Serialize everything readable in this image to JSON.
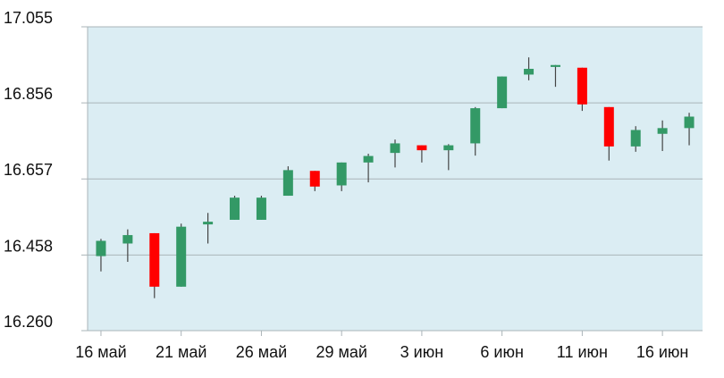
{
  "colors": {
    "plot_bg": "#dbedf3",
    "grid": "#aab4b8",
    "up": "#339966",
    "down": "#ff0000",
    "wick": "#444444",
    "axis_text": "#111111"
  },
  "chart_data": {
    "type": "candlestick",
    "title": "",
    "xlabel": "",
    "ylabel": "",
    "ylim": [
      16.26,
      17.055
    ],
    "yticks": [
      "16.260",
      "16.458",
      "16.657",
      "16.856",
      "17.055"
    ],
    "xtick_labels": [
      {
        "index": 0,
        "label": "16 май"
      },
      {
        "index": 3,
        "label": "21 май"
      },
      {
        "index": 6,
        "label": "26 май"
      },
      {
        "index": 9,
        "label": "29 май"
      },
      {
        "index": 12,
        "label": "3 июн"
      },
      {
        "index": 15,
        "label": "6 июн"
      },
      {
        "index": 18,
        "label": "11 июн"
      },
      {
        "index": 21,
        "label": "16 июн"
      }
    ],
    "grid": "horizontal",
    "candles": [
      {
        "o": 16.455,
        "h": 16.5,
        "l": 16.415,
        "c": 16.495
      },
      {
        "o": 16.488,
        "h": 16.525,
        "l": 16.44,
        "c": 16.51
      },
      {
        "o": 16.515,
        "h": 16.515,
        "l": 16.345,
        "c": 16.375
      },
      {
        "o": 16.375,
        "h": 16.54,
        "l": 16.375,
        "c": 16.532
      },
      {
        "o": 16.538,
        "h": 16.568,
        "l": 16.488,
        "c": 16.545
      },
      {
        "o": 16.55,
        "h": 16.613,
        "l": 16.55,
        "c": 16.608
      },
      {
        "o": 16.55,
        "h": 16.613,
        "l": 16.55,
        "c": 16.608
      },
      {
        "o": 16.613,
        "h": 16.69,
        "l": 16.613,
        "c": 16.68
      },
      {
        "o": 16.678,
        "h": 16.678,
        "l": 16.625,
        "c": 16.637
      },
      {
        "o": 16.64,
        "h": 16.7,
        "l": 16.625,
        "c": 16.7
      },
      {
        "o": 16.7,
        "h": 16.723,
        "l": 16.648,
        "c": 16.717
      },
      {
        "o": 16.725,
        "h": 16.76,
        "l": 16.687,
        "c": 16.75
      },
      {
        "o": 16.745,
        "h": 16.745,
        "l": 16.7,
        "c": 16.732
      },
      {
        "o": 16.732,
        "h": 16.748,
        "l": 16.68,
        "c": 16.745
      },
      {
        "o": 16.75,
        "h": 16.845,
        "l": 16.718,
        "c": 16.842
      },
      {
        "o": 16.842,
        "h": 16.925,
        "l": 16.842,
        "c": 16.925
      },
      {
        "o": 16.93,
        "h": 16.975,
        "l": 16.915,
        "c": 16.945
      },
      {
        "o": 16.95,
        "h": 16.955,
        "l": 16.898,
        "c": 16.955
      },
      {
        "o": 16.948,
        "h": 16.948,
        "l": 16.835,
        "c": 16.852
      },
      {
        "o": 16.845,
        "h": 16.845,
        "l": 16.705,
        "c": 16.742
      },
      {
        "o": 16.742,
        "h": 16.795,
        "l": 16.728,
        "c": 16.785
      },
      {
        "o": 16.775,
        "h": 16.81,
        "l": 16.73,
        "c": 16.79
      },
      {
        "o": 16.79,
        "h": 16.83,
        "l": 16.745,
        "c": 16.82
      }
    ]
  }
}
